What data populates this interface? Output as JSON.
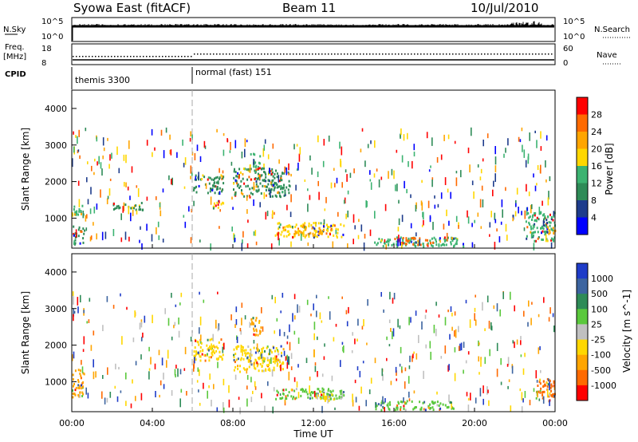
{
  "header": {
    "title": "Syowa East (fitACF)",
    "beam": "Beam 11",
    "date": "10/Jul/2010"
  },
  "strips": {
    "nsky_label": "N.Sky",
    "nsky_ticks": [
      "10^5",
      "10^0"
    ],
    "nsearch_label": "N.Search",
    "nsearch_ticks": [
      "10^5",
      "10^0"
    ],
    "freq_label": "Freq.",
    "freq_unit": "[MHz]",
    "freq_ticks": [
      "18",
      "8"
    ],
    "nave_label": "Nave",
    "nave_ticks": [
      "60",
      "0"
    ],
    "cpid_label": "CPID",
    "cpid_segments": [
      {
        "name": "themis 3300",
        "start_hour": 0
      },
      {
        "name": "normal (fast) 151",
        "start_hour": 6
      }
    ]
  },
  "axes": {
    "ylabel": "Slant Range [km]",
    "xlabel": "Time UT",
    "y_ticks": [
      "1000",
      "2000",
      "3000",
      "4000"
    ],
    "x_ticks": [
      "00:00",
      "04:00",
      "08:00",
      "12:00",
      "16:00",
      "20:00",
      "00:00"
    ]
  },
  "colorbars": {
    "power": {
      "label": "Power [dB]",
      "ticks": [
        "28",
        "24",
        "20",
        "16",
        "12",
        "8",
        "4"
      ],
      "colors": [
        "#ff0000",
        "#ff6a00",
        "#ffa500",
        "#ffd700",
        "#3cb371",
        "#2e8b57",
        "#1e3c8c",
        "#0000ff"
      ]
    },
    "velocity": {
      "label": "Velocity [m s^-1]",
      "ticks": [
        "1000",
        "500",
        "100",
        "25",
        "-25",
        "-100",
        "-500",
        "-1000"
      ],
      "colors": [
        "#1e3cc8",
        "#3c64a0",
        "#2e8b57",
        "#5ac83c",
        "#c0c0c0",
        "#ffd700",
        "#ffa500",
        "#ff6a00",
        "#ff0000"
      ]
    }
  },
  "chart_data": [
    {
      "type": "heatmap",
      "name": "power",
      "xlabel": "Time UT",
      "ylabel": "Slant Range [km]",
      "xlim_hours": [
        0,
        24
      ],
      "ylim_km": [
        180,
        4500
      ],
      "colorbar_label": "Power [dB]",
      "regions": [
        {
          "t": [
            0.0,
            0.6
          ],
          "r": [
            1100,
            1450
          ],
          "level": "12"
        },
        {
          "t": [
            0.0,
            0.6
          ],
          "r": [
            300,
            800
          ],
          "level": "8"
        },
        {
          "t": [
            2.0,
            3.5
          ],
          "r": [
            1250,
            1450
          ],
          "level": "8"
        },
        {
          "t": [
            6.0,
            7.5
          ],
          "r": [
            1700,
            2200
          ],
          "level": "8"
        },
        {
          "t": [
            7.0,
            7.6
          ],
          "r": [
            1300,
            1500
          ],
          "level": "16"
        },
        {
          "t": [
            8.0,
            10.8
          ],
          "r": [
            1600,
            2400
          ],
          "level": "8"
        },
        {
          "t": [
            8.8,
            9.4
          ],
          "r": [
            2300,
            2800
          ],
          "level": "12"
        },
        {
          "t": [
            10.0,
            13.5
          ],
          "r": [
            500,
            900
          ],
          "level": "16"
        },
        {
          "t": [
            11.0,
            12.5
          ],
          "r": [
            550,
            800
          ],
          "level": "20"
        },
        {
          "t": [
            15.0,
            19.5
          ],
          "r": [
            250,
            500
          ],
          "level": "12"
        },
        {
          "t": [
            16.0,
            18.0
          ],
          "r": [
            300,
            500
          ],
          "level": "24"
        },
        {
          "t": [
            22.5,
            24.0
          ],
          "r": [
            400,
            1200
          ],
          "level": "12"
        },
        {
          "t": [
            23.5,
            24.0
          ],
          "r": [
            600,
            900
          ],
          "level": "20"
        }
      ]
    },
    {
      "type": "heatmap",
      "name": "velocity",
      "xlabel": "Time UT",
      "ylabel": "Slant Range [km]",
      "xlim_hours": [
        0,
        24
      ],
      "ylim_km": [
        180,
        4500
      ],
      "colorbar_label": "Velocity [m s^-1]",
      "regions": [
        {
          "t": [
            0.0,
            0.6
          ],
          "r": [
            600,
            1400
          ],
          "level": "-100"
        },
        {
          "t": [
            6.0,
            7.5
          ],
          "r": [
            1600,
            2200
          ],
          "level": "-25"
        },
        {
          "t": [
            8.0,
            10.5
          ],
          "r": [
            1300,
            2000
          ],
          "level": "-25"
        },
        {
          "t": [
            8.8,
            9.4
          ],
          "r": [
            2300,
            2800
          ],
          "level": "-100"
        },
        {
          "t": [
            10.0,
            13.5
          ],
          "r": [
            550,
            850
          ],
          "level": "100"
        },
        {
          "t": [
            12.0,
            13.0
          ],
          "r": [
            500,
            700
          ],
          "level": "-25"
        },
        {
          "t": [
            15.0,
            19.0
          ],
          "r": [
            250,
            500
          ],
          "level": "100"
        },
        {
          "t": [
            23.0,
            24.0
          ],
          "r": [
            500,
            1100
          ],
          "level": "-500"
        }
      ]
    }
  ]
}
